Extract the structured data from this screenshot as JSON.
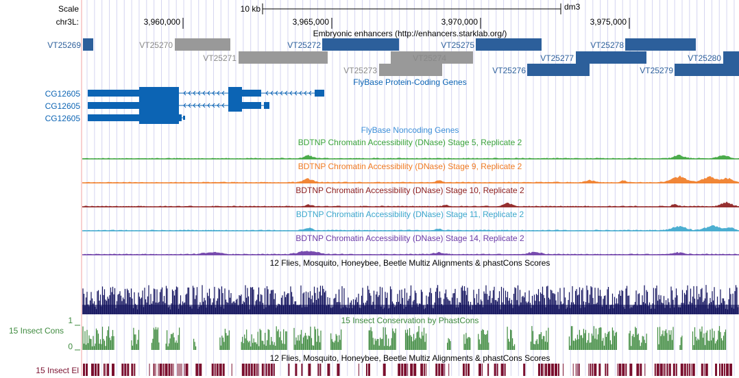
{
  "browser": {
    "scale_label": "Scale",
    "scale_bar_text": "10 kb",
    "assembly": "dm3",
    "chrom_label": "chr3L:",
    "ruler_ticks": [
      "3,960,000",
      "3,965,000",
      "3,970,000",
      "3,975,000"
    ]
  },
  "tracks": {
    "enhancers": {
      "title": "Embryonic enhancers (http://enhancers.starklab.org/)",
      "items": [
        {
          "name": "VT25269",
          "color": "#2c5f9b",
          "label_color": "#2c5f9b"
        },
        {
          "name": "VT25270",
          "color": "#999999",
          "label_color": "#888888"
        },
        {
          "name": "VT25271",
          "color": "#999999",
          "label_color": "#888888"
        },
        {
          "name": "VT25272",
          "color": "#2c5f9b",
          "label_color": "#2c5f9b"
        },
        {
          "name": "VT25273",
          "color": "#999999",
          "label_color": "#888888"
        },
        {
          "name": "VT25274",
          "color": "#999999",
          "label_color": "#888888"
        },
        {
          "name": "VT25275",
          "color": "#2c5f9b",
          "label_color": "#2c5f9b"
        },
        {
          "name": "VT25276",
          "color": "#2c5f9b",
          "label_color": "#2c5f9b"
        },
        {
          "name": "VT25277",
          "color": "#2c5f9b",
          "label_color": "#2c5f9b"
        },
        {
          "name": "VT25278",
          "color": "#2c5f9b",
          "label_color": "#2c5f9b"
        },
        {
          "name": "VT25279",
          "color": "#2c5f9b",
          "label_color": "#2c5f9b"
        },
        {
          "name": "VT25280",
          "color": "#2c5f9b",
          "label_color": "#2c5f9b"
        }
      ]
    },
    "flybase_coding": {
      "title": "FlyBase Protein-Coding Genes",
      "color": "#0c64b4",
      "genes": [
        {
          "name": "CG12605"
        },
        {
          "name": "CG12605"
        },
        {
          "name": "CG12605"
        }
      ]
    },
    "flybase_noncoding": {
      "title": "FlyBase Noncoding Genes",
      "color": "#3c8ed8"
    },
    "dnase": [
      {
        "title": "BDTNP Chromatin Accessibility (DNase) Stage 5, Replicate 2",
        "color": "#3aa33a"
      },
      {
        "title": "BDTNP Chromatin Accessibility (DNase) Stage 9, Replicate 2",
        "color": "#f07a22"
      },
      {
        "title": "BDTNP Chromatin Accessibility (DNase) Stage 10, Replicate 2",
        "color": "#8c1c1c"
      },
      {
        "title": "BDTNP Chromatin Accessibility (DNase) Stage 11, Replicate 2",
        "color": "#3aa6cc"
      },
      {
        "title": "BDTNP Chromatin Accessibility (DNase) Stage 14, Replicate 2",
        "color": "#6a3aa6"
      }
    ],
    "multiz": {
      "title": "12 Flies, Mosquito, Honeybee, Beetle Multiz Alignments & phastCons Scores",
      "color": "#12125e"
    },
    "insect_cons": {
      "title": "15 Insect Conservation by PhastCons",
      "side_label": "15 Insect Cons",
      "axis_max": "1",
      "axis_min": "0",
      "color": "#3e8a3e",
      "title_color": "#3e8a3e"
    },
    "insect_el": {
      "title": "12 Flies, Mosquito, Honeybee, Beetle Multiz Alignments & phastCons Scores",
      "side_label": "15 Insect El",
      "color": "#7a0f2e"
    }
  },
  "colors": {
    "grid": "#d4d4f0",
    "left_border": "#f2a0a0"
  }
}
